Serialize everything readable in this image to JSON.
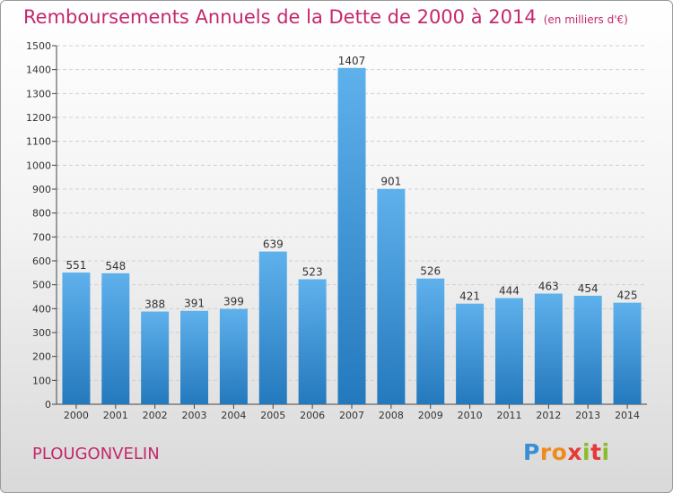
{
  "header": {
    "title": "Remboursements Annuels de la Dette de 2000 à 2014",
    "unit": "(en milliers d'€)"
  },
  "footer": {
    "place": "PLOUGONVELIN",
    "logo": "Proxiti",
    "logo_colors": [
      "#3a8ed3",
      "#f08a1c",
      "#8bbd2a",
      "#e53a3a"
    ]
  },
  "chart_data": {
    "type": "bar",
    "title": "Remboursements Annuels de la Dette de 2000 à 2014",
    "subtitle": "(en milliers d'€)",
    "xlabel": "",
    "ylabel": "",
    "categories": [
      "2000",
      "2001",
      "2002",
      "2003",
      "2004",
      "2005",
      "2006",
      "2007",
      "2008",
      "2009",
      "2010",
      "2011",
      "2012",
      "2013",
      "2014"
    ],
    "values": [
      551,
      548,
      388,
      391,
      399,
      639,
      523,
      1407,
      901,
      526,
      421,
      444,
      463,
      454,
      425
    ],
    "ylim": [
      0,
      1500
    ],
    "yticks": [
      0,
      100,
      200,
      300,
      400,
      500,
      600,
      700,
      800,
      900,
      1000,
      1100,
      1200,
      1300,
      1400,
      1500
    ],
    "grid": true,
    "bar_color": "#3c96dc",
    "legend": "none"
  }
}
